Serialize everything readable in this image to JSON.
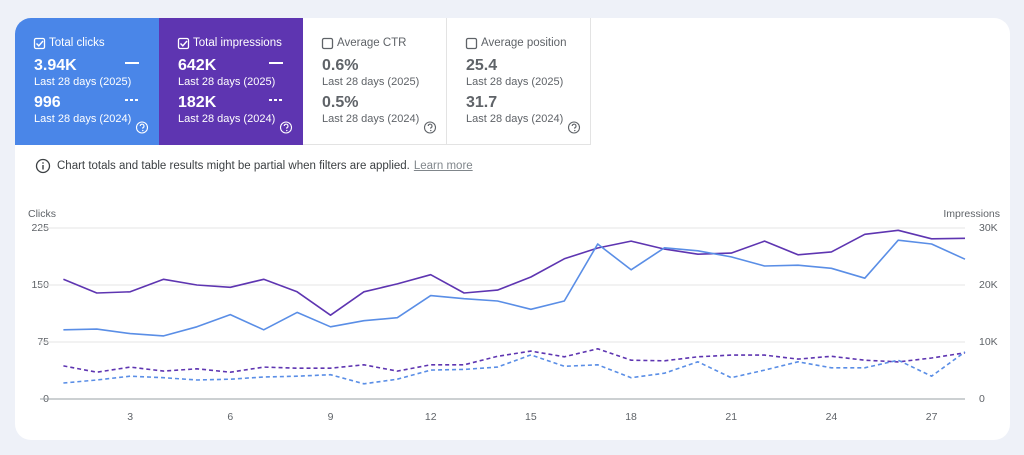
{
  "metrics": [
    {
      "label": "Total clicks",
      "checked": true,
      "color": "#4a86e8",
      "current": "3.94K",
      "current_period": "Last 28 days (2025)",
      "previous": "996",
      "previous_period": "Last 28 days (2024)"
    },
    {
      "label": "Total impressions",
      "checked": true,
      "color": "#5e35b1",
      "current": "642K",
      "current_period": "Last 28 days (2025)",
      "previous": "182K",
      "previous_period": "Last 28 days (2024)"
    },
    {
      "label": "Average CTR",
      "checked": false,
      "current": "0.6%",
      "current_period": "Last 28 days (2025)",
      "previous": "0.5%",
      "previous_period": "Last 28 days (2024)"
    },
    {
      "label": "Average position",
      "checked": false,
      "current": "25.4",
      "current_period": "Last 28 days (2025)",
      "previous": "31.7",
      "previous_period": "Last 28 days (2024)"
    }
  ],
  "notice": {
    "text": "Chart totals and table results might be partial when filters are applied.",
    "link": "Learn more"
  },
  "chart_data": {
    "type": "line",
    "y_label": "Clicks",
    "y2_label": "Impressions",
    "x": [
      1,
      2,
      3,
      4,
      5,
      6,
      7,
      8,
      9,
      10,
      11,
      12,
      13,
      14,
      15,
      16,
      17,
      18,
      19,
      20,
      21,
      22,
      23,
      24,
      25,
      26,
      27,
      28
    ],
    "xlim": [
      0.3,
      28
    ],
    "xticks": [
      3,
      6,
      9,
      12,
      15,
      18,
      21,
      24,
      27
    ],
    "ylim": [
      0,
      225
    ],
    "yticks": [
      0,
      75,
      150,
      225
    ],
    "y2lim": [
      0,
      30000
    ],
    "y2ticks": [
      {
        "value": 0,
        "label": "0"
      },
      {
        "value": 10000,
        "label": "10K"
      },
      {
        "value": 20000,
        "label": "20K"
      },
      {
        "value": 30000,
        "label": "30K"
      }
    ],
    "grid": true,
    "series": [
      {
        "color": "#5e35b1",
        "dashed": false,
        "axis": "y2",
        "values": [
          21000,
          18600,
          18800,
          21000,
          20000,
          19600,
          21000,
          18800,
          14700,
          18800,
          20200,
          21800,
          18600,
          19100,
          21400,
          24600,
          26500,
          27700,
          26300,
          25400,
          25600,
          27700,
          25300,
          25800,
          28900,
          29600,
          28100,
          28200
        ]
      },
      {
        "color": "#5a8ee6",
        "dashed": false,
        "axis": "y",
        "values": [
          91,
          92,
          86,
          83,
          95,
          111,
          91,
          114,
          95,
          103,
          107,
          136,
          132,
          129,
          118,
          129,
          204,
          170,
          199,
          195,
          187,
          175,
          176,
          172,
          159,
          209,
          204,
          184
        ]
      },
      {
        "color": "#5e35b1",
        "dashed": true,
        "axis": "y2",
        "values": [
          5800,
          4700,
          5600,
          4900,
          5300,
          4700,
          5600,
          5400,
          5400,
          6000,
          4900,
          6000,
          6000,
          7500,
          8400,
          7400,
          8800,
          6800,
          6700,
          7400,
          7700,
          7700,
          7000,
          7500,
          6800,
          6500,
          7200,
          8100
        ]
      },
      {
        "color": "#5a8ee6",
        "dashed": true,
        "axis": "y",
        "values": [
          21,
          25,
          30,
          28,
          25,
          26,
          29,
          30,
          32,
          20,
          26,
          38,
          39,
          42,
          58,
          43,
          45,
          28,
          34,
          49,
          28,
          38,
          49,
          41,
          41,
          51,
          30,
          62
        ]
      }
    ]
  }
}
